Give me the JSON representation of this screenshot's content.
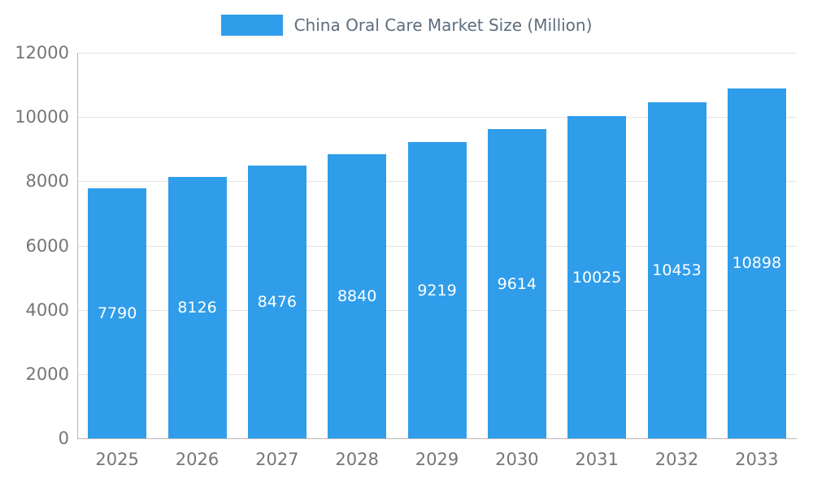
{
  "chart_data": {
    "type": "bar",
    "title": "China Oral Care Market Size (Million)",
    "categories": [
      "2025",
      "2026",
      "2027",
      "2028",
      "2029",
      "2030",
      "2031",
      "2032",
      "2033"
    ],
    "values": [
      7790,
      8126,
      8476,
      8840,
      9219,
      9614,
      10025,
      10453,
      10898
    ],
    "xlabel": "",
    "ylabel": "",
    "ylim": [
      0,
      12000
    ],
    "ytick_step": 2000,
    "yticks": [
      0,
      2000,
      4000,
      6000,
      8000,
      10000,
      12000
    ],
    "grid": true,
    "legend_position": "top-center",
    "bar_color": "#2f9dea",
    "label_color": "#ffffff",
    "axis_text_color": "#757575"
  }
}
